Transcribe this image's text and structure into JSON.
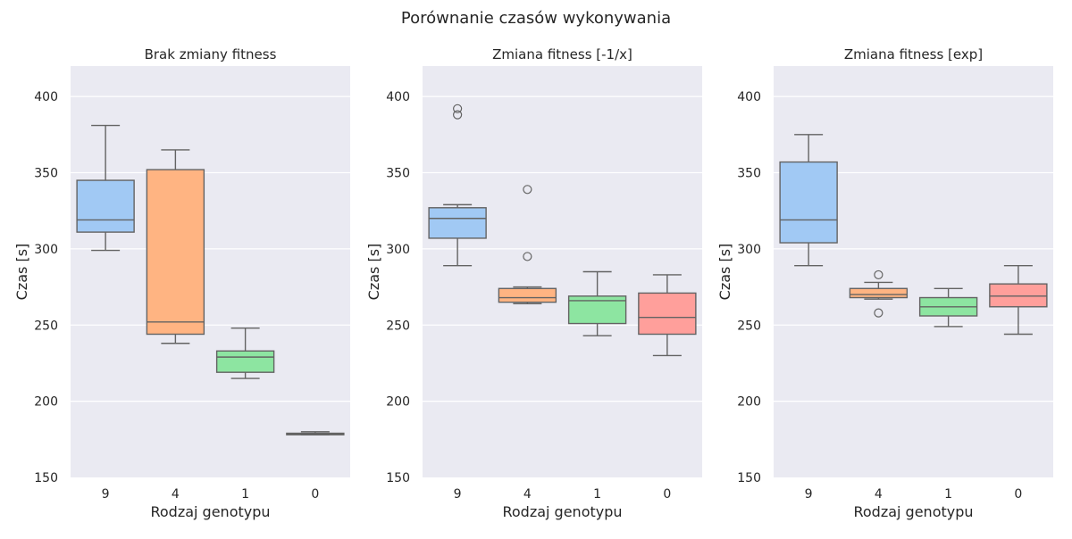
{
  "chart_data": {
    "type": "box",
    "suptitle": "Porównanie czasów wykonywania",
    "categories": [
      "9",
      "4",
      "1",
      "0"
    ],
    "colors": [
      "#a1c9f4",
      "#ffb482",
      "#8de5a1",
      "#ff9f9b"
    ],
    "xlabel": "Rodzaj genotypu",
    "ylabel": "Czas [s]",
    "ylim": [
      150,
      420
    ],
    "yticks": [
      150,
      200,
      250,
      300,
      350,
      400
    ],
    "grid": true,
    "panels": [
      {
        "title": "Brak zmiany fitness",
        "boxes": [
          {
            "category": "9",
            "whisker_low": 299,
            "q1": 311,
            "median": 319,
            "q3": 345,
            "whisker_high": 381,
            "outliers": []
          },
          {
            "category": "4",
            "whisker_low": 238,
            "q1": 244,
            "median": 252,
            "q3": 352,
            "whisker_high": 365,
            "outliers": []
          },
          {
            "category": "1",
            "whisker_low": 215,
            "q1": 219,
            "median": 229,
            "q3": 233,
            "whisker_high": 248,
            "outliers": []
          },
          {
            "category": "0",
            "whisker_low": 178,
            "q1": 178,
            "median": 178.5,
            "q3": 179,
            "whisker_high": 180,
            "outliers": []
          }
        ]
      },
      {
        "title": "Zmiana fitness [-1/x]",
        "boxes": [
          {
            "category": "9",
            "whisker_low": 289,
            "q1": 307,
            "median": 320,
            "q3": 327,
            "whisker_high": 329,
            "outliers": [
              392,
              388
            ]
          },
          {
            "category": "4",
            "whisker_low": 264,
            "q1": 265,
            "median": 268,
            "q3": 274,
            "whisker_high": 275,
            "outliers": [
              339,
              295
            ]
          },
          {
            "category": "1",
            "whisker_low": 243,
            "q1": 251,
            "median": 266,
            "q3": 269,
            "whisker_high": 285,
            "outliers": []
          },
          {
            "category": "0",
            "whisker_low": 230,
            "q1": 244,
            "median": 255,
            "q3": 271,
            "whisker_high": 283,
            "outliers": []
          }
        ]
      },
      {
        "title": "Zmiana fitness [exp]",
        "boxes": [
          {
            "category": "9",
            "whisker_low": 289,
            "q1": 304,
            "median": 319,
            "q3": 357,
            "whisker_high": 375,
            "outliers": []
          },
          {
            "category": "4",
            "whisker_low": 267,
            "q1": 268,
            "median": 270,
            "q3": 274,
            "whisker_high": 278,
            "outliers": [
              283,
              258
            ]
          },
          {
            "category": "1",
            "whisker_low": 249,
            "q1": 256,
            "median": 262,
            "q3": 268,
            "whisker_high": 274,
            "outliers": []
          },
          {
            "category": "0",
            "whisker_low": 244,
            "q1": 262,
            "median": 269,
            "q3": 277,
            "whisker_high": 289,
            "outliers": []
          }
        ]
      }
    ]
  }
}
